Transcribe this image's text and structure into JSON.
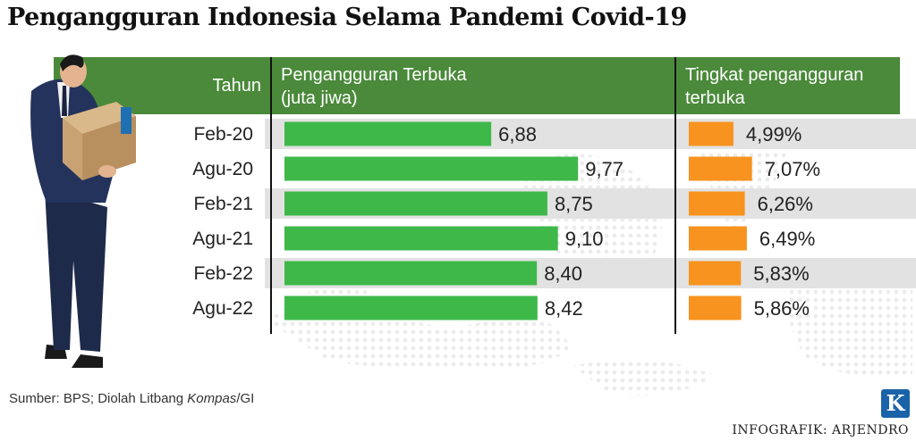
{
  "title": "Pengangguran Indonesia Selama Pandemi Covid-19",
  "headers": {
    "year": "Tahun",
    "unemployed_line1": "Pengangguran Terbuka",
    "unemployed_line2": "(juta jiwa)",
    "rate_line1": "Tingkat pengangguran",
    "rate_line2": "terbuka"
  },
  "colors": {
    "header_green": "#4a8a3a",
    "bar_green": "#3fb84a",
    "bar_orange": "#f7931e",
    "band_gray": "#e2e2e2"
  },
  "chart_data": [
    {
      "type": "bar",
      "orientation": "horizontal",
      "categories": [
        "Feb-20",
        "Agu-20",
        "Feb-21",
        "Agu-21",
        "Feb-22",
        "Agu-22"
      ],
      "series": [
        {
          "name": "Pengangguran Terbuka (juta jiwa)",
          "values": [
            6.88,
            9.77,
            8.75,
            9.1,
            8.4,
            8.42
          ]
        }
      ],
      "data_labels": [
        "6,88",
        "9,77",
        "8,75",
        "9,10",
        "8,40",
        "8,42"
      ],
      "xlim": [
        0,
        12.8
      ],
      "grid": false
    },
    {
      "type": "bar",
      "orientation": "horizontal",
      "categories": [
        "Feb-20",
        "Agu-20",
        "Feb-21",
        "Agu-21",
        "Feb-22",
        "Agu-22"
      ],
      "series": [
        {
          "name": "Tingkat pengangguran terbuka",
          "values": [
            4.99,
            7.07,
            6.26,
            6.49,
            5.83,
            5.86
          ]
        }
      ],
      "data_labels": [
        "4,99%",
        "7,07%",
        "6,26%",
        "6,49%",
        "5,83%",
        "5,86%"
      ],
      "xlim": [
        0,
        25
      ],
      "grid": false
    }
  ],
  "source_prefix": "Sumber: BPS; Diolah Litbang ",
  "source_italic": "Kompas",
  "source_suffix": "/GI",
  "credit": "INFOGRAFIK: ARJENDRO",
  "logo_letter": "K"
}
